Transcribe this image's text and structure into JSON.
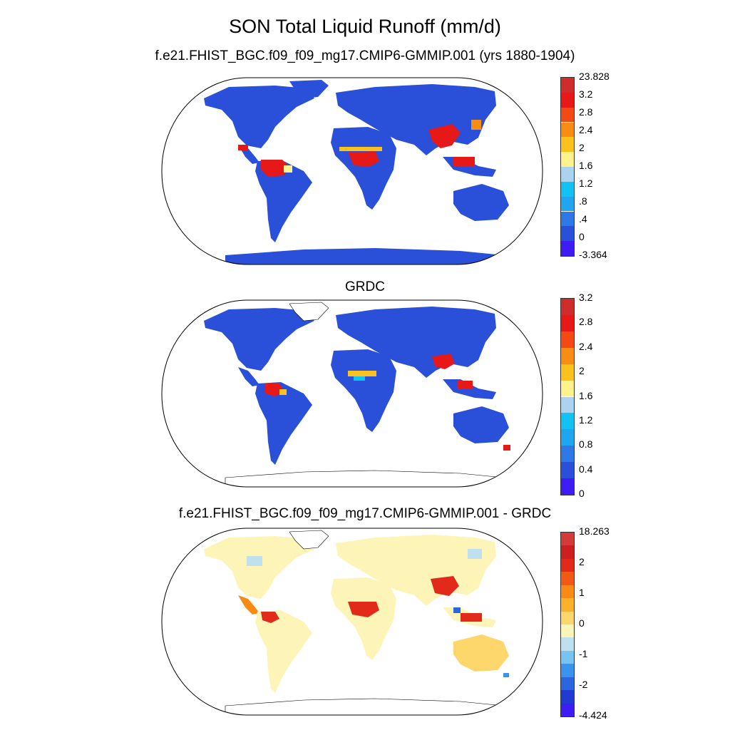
{
  "figure": {
    "title": "SON Total Liquid Runoff (mm/d)"
  },
  "panels": [
    {
      "title": "f.e21.FHIST_BGC.f09_f09_mg17.CMIP6-GMMIP.001 (yrs 1880-1904)",
      "colorbar": {
        "colors": [
          "#3d1cf5",
          "#2a4fd9",
          "#2e79e6",
          "#1fa6ef",
          "#13c2f4",
          "#a9d3ef",
          "#fdf28c",
          "#fbc21d",
          "#f98d13",
          "#f24a12",
          "#e61818",
          "#cf2c2c"
        ],
        "labels": [
          "-3.364",
          "0",
          ".4",
          ".8",
          "1.2",
          "1.6",
          "2",
          "2.4",
          "2.8",
          "3.2",
          "23.828"
        ]
      }
    },
    {
      "title": "GRDC",
      "colorbar": {
        "colors": [
          "#3d1cf5",
          "#2a4fd9",
          "#2e79e6",
          "#1fa6ef",
          "#13c2f4",
          "#a9d3ef",
          "#fdf28c",
          "#fbc21d",
          "#f98d13",
          "#f24a12",
          "#e61818",
          "#cf2c2c"
        ],
        "labels": [
          "0",
          "0.4",
          "0.8",
          "1.2",
          "1.6",
          "2",
          "2.4",
          "2.8",
          "3.2"
        ]
      }
    },
    {
      "title": "f.e21.FHIST_BGC.f09_f09_mg17.CMIP6-GMMIP.001 - GRDC",
      "colorbar": {
        "colors": [
          "#3d1cf5",
          "#1f3bd0",
          "#2a66de",
          "#3a93ec",
          "#77c3f3",
          "#bfe0ee",
          "#fdf5b8",
          "#fdd66c",
          "#fbb22a",
          "#f98a16",
          "#f05a12",
          "#e22a1a",
          "#cc1f1f",
          "#d43a3a"
        ],
        "labels": [
          "-4.424",
          "-2",
          "-1",
          "0",
          "1",
          "2",
          "18.263"
        ]
      }
    }
  ]
}
